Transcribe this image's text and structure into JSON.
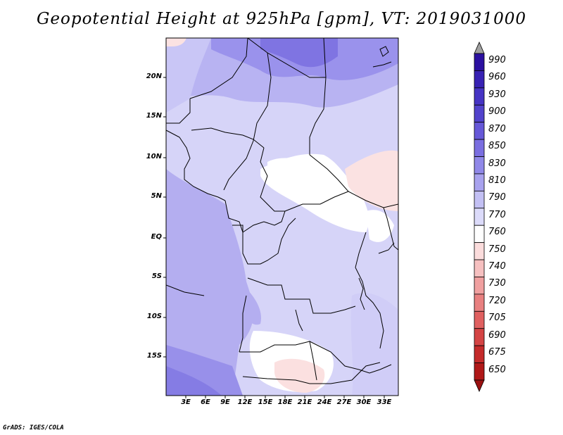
{
  "title": "Geopotential Height at 925hPa [gpm], VT: 2019031000",
  "footer": "GrADS: IGES/COLA",
  "y_axis_labels": [
    "20N",
    "15N",
    "10N",
    "5N",
    "EQ",
    "5S",
    "10S",
    "15S"
  ],
  "x_axis_labels": [
    "3E",
    "6E",
    "9E",
    "12E",
    "15E",
    "18E",
    "21E",
    "24E",
    "27E",
    "30E",
    "33E"
  ],
  "colorbar": {
    "levels": [
      "990",
      "960",
      "930",
      "900",
      "870",
      "850",
      "830",
      "810",
      "790",
      "770",
      "760",
      "750",
      "740",
      "730",
      "720",
      "705",
      "690",
      "675",
      "650"
    ],
    "colors": [
      "#2b10a0",
      "#3822b4",
      "#4634c4",
      "#5243cc",
      "#6658d8",
      "#7a6ee0",
      "#9088e8",
      "#a8a2ee",
      "#c3c0f4",
      "#dcdbfa",
      "#ffffff",
      "#fbdcdc",
      "#f6c0c0",
      "#f0a0a0",
      "#e88080",
      "#e06060",
      "#d44444",
      "#c42a2a",
      "#b01818"
    ],
    "top_arrow_color": "#a0a0a0",
    "bottom_arrow_color": "#9a1010"
  }
}
